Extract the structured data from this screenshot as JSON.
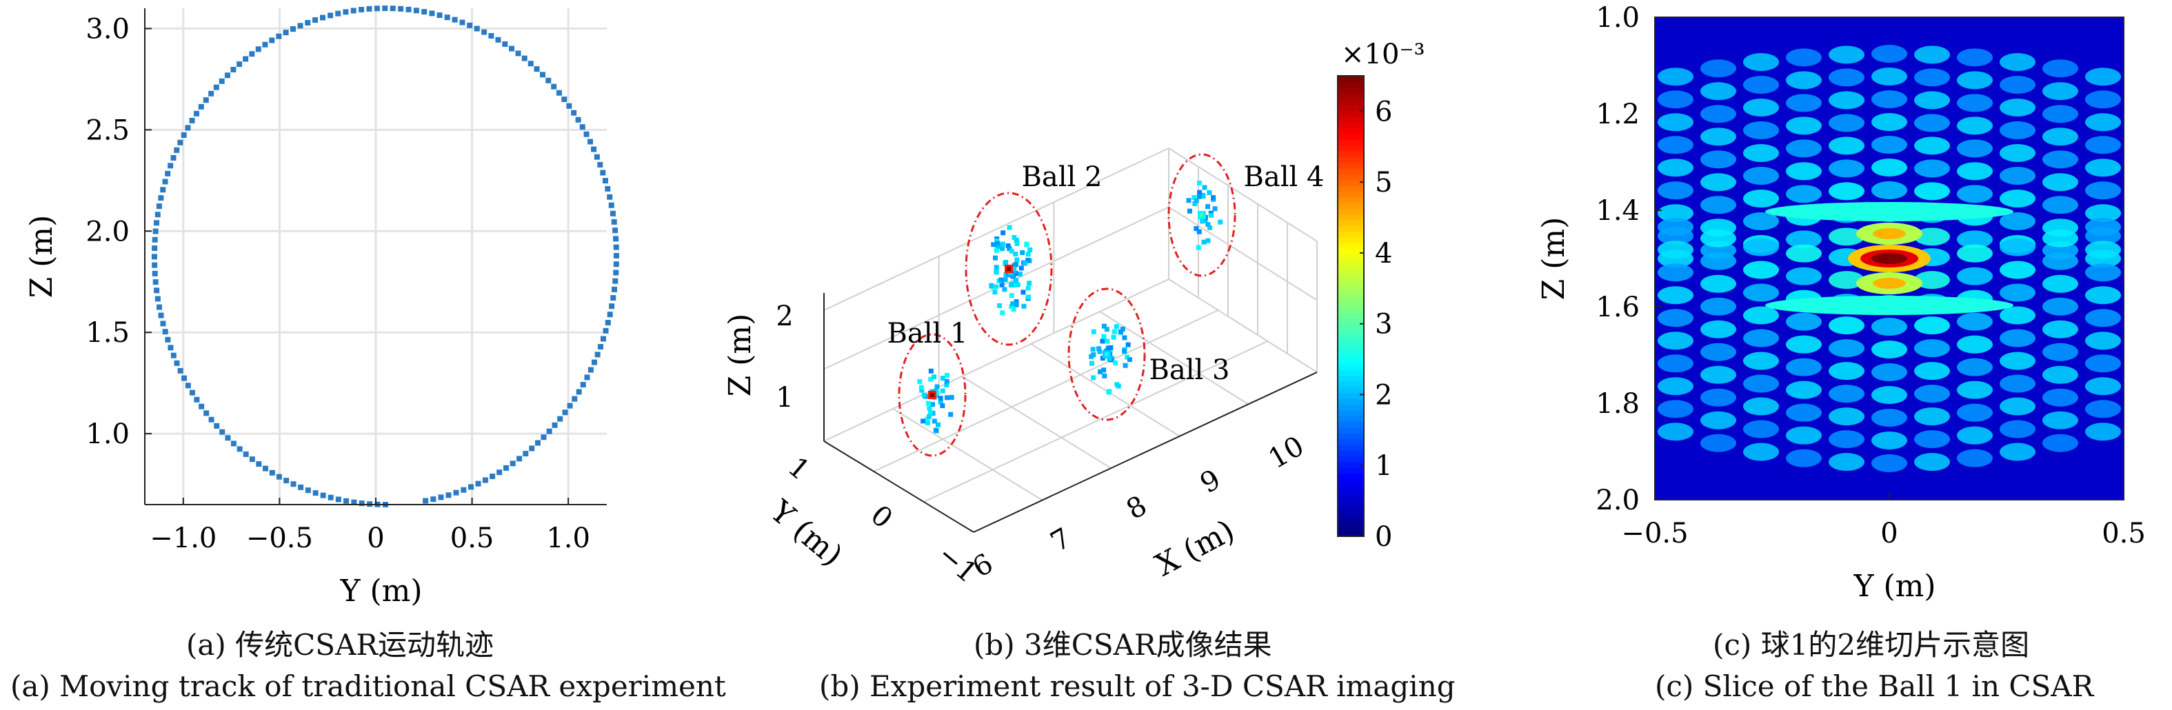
{
  "panels": [
    {
      "caption_cn": "(a) 传统CSAR运动轨迹",
      "caption_en": "(a) Moving track of traditional CSAR experiment"
    },
    {
      "caption_cn": "(b) 3维CSAR成像结果",
      "caption_en": "(b) Experiment result of 3-D CSAR imaging"
    },
    {
      "caption_cn": "(c) 球1的2维切片示意图",
      "caption_en": "(c) Slice of the Ball 1 in CSAR"
    }
  ],
  "colors": {
    "track": "#2b7bc4",
    "grid": "#e3e3e3",
    "ellipse": "#e02020",
    "jet_low": "#00008f",
    "jet_high": "#800000"
  },
  "chart_data": [
    {
      "type": "scatter",
      "title": "",
      "xlabel": "Y (m)",
      "ylabel": "Z (m)",
      "xlim": [
        -1.2,
        1.2
      ],
      "ylim": [
        0.65,
        3.1
      ],
      "xticks": [
        -1.0,
        -0.5,
        0,
        0.5,
        1.0
      ],
      "xtick_labels": [
        "−1.0",
        "−0.5",
        "0",
        "0.5",
        "1.0"
      ],
      "yticks": [
        1.0,
        1.5,
        2.0,
        2.5,
        3.0
      ],
      "ytick_labels": [
        "1.0",
        "1.5",
        "2.0",
        "2.5",
        "3.0"
      ],
      "grid": true,
      "series": [
        {
          "center": [
            0.05,
            1.875
          ],
          "radius_y": 1.2,
          "radius_z": 1.225,
          "point_count": 180,
          "gap_between_deg": [
            -90,
            -80
          ]
        }
      ]
    },
    {
      "type": "scatter",
      "title": "",
      "xlabel": "X (m)",
      "ylabel": "Y (m)",
      "zlabel": "Z (m)",
      "xticks": [
        "6",
        "7",
        "8",
        "9",
        "10"
      ],
      "yticks": [
        "−1",
        "0",
        "1"
      ],
      "zticks": [
        "1",
        "2"
      ],
      "colorbar": {
        "min": 0,
        "max": 6.5,
        "exponent": "×10⁻³",
        "ticks": [
          "0",
          "1",
          "2",
          "3",
          "4",
          "5",
          "6"
        ]
      },
      "annotations": [
        "Ball 1",
        "Ball 2",
        "Ball 3",
        "Ball 4"
      ],
      "clusters": [
        {
          "label": "Ball 1",
          "x": 6.8,
          "y": 0.3,
          "z": 1.0,
          "peak": 6.5
        },
        {
          "label": "Ball 2",
          "x": 7.4,
          "y": 1.3,
          "z": 1.8,
          "peak": 6.5
        },
        {
          "label": "Ball 3",
          "x": 8.6,
          "y": 0.0,
          "z": 1.3,
          "peak": 2.5
        },
        {
          "label": "Ball 4",
          "x": 9.5,
          "y": 1.2,
          "z": 2.0,
          "peak": 2.8
        }
      ]
    },
    {
      "type": "heatmap",
      "title": "",
      "xlabel": "Y (m)",
      "ylabel": "Z (m)",
      "xlim": [
        -0.5,
        0.5
      ],
      "ylim": [
        1.0,
        2.0
      ],
      "y_inverted": true,
      "xticks": [
        -0.5,
        0,
        0.5
      ],
      "xtick_labels": [
        "−0.5",
        "0",
        "0.5"
      ],
      "yticks": [
        1.0,
        1.2,
        1.4,
        1.6,
        1.8,
        2.0
      ],
      "ytick_labels": [
        "1.0",
        "1.2",
        "1.4",
        "1.6",
        "1.8",
        "2.0"
      ],
      "peak": {
        "y": 0.0,
        "z": 1.5
      }
    }
  ]
}
